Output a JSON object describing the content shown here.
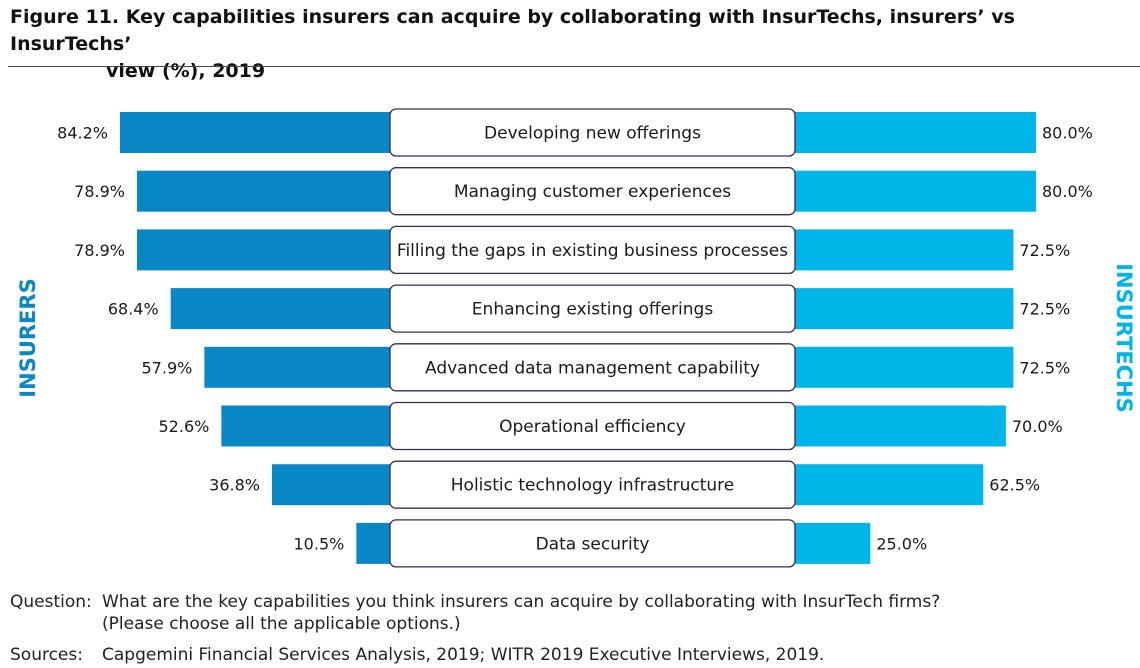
{
  "title": {
    "line1": "Figure 11. Key capabilities insurers can acquire by collaborating with InsurTechs, insurers’ vs InsurTechs’",
    "line2": "view (%), 2019"
  },
  "colors": {
    "insurers": "#0a88c6",
    "insurtechs": "#00b5e8",
    "box_border": "#3b2a52"
  },
  "chart_data": {
    "type": "bar",
    "layout": "butterfly",
    "left_label": "INSURERS",
    "right_label": "INSURTECHS",
    "categories": [
      "Developing new offerings",
      "Managing customer experiences",
      "Filling the gaps in existing business processes",
      "Enhancing existing offerings",
      "Advanced data management capability",
      "Operational efficiency",
      "Holistic technology infrastructure",
      "Data security"
    ],
    "series": [
      {
        "name": "INSURERS",
        "values": [
          84.2,
          78.9,
          78.9,
          68.4,
          57.9,
          52.6,
          36.8,
          10.5
        ],
        "labels": [
          "84.2%",
          "78.9%",
          "78.9%",
          "68.4%",
          "57.9%",
          "52.6%",
          "36.8%",
          "10.5%"
        ]
      },
      {
        "name": "INSURTECHS",
        "values": [
          80.0,
          80.0,
          72.5,
          72.5,
          72.5,
          70.0,
          62.5,
          25.0
        ],
        "labels": [
          "80.0%",
          "80.0%",
          "72.5%",
          "72.5%",
          "72.5%",
          "70.0%",
          "62.5%",
          "25.0%"
        ]
      }
    ],
    "unit": "%"
  },
  "question": {
    "label": "Question:",
    "line1": "What are the key capabilities you think insurers can acquire by collaborating with InsurTech firms?",
    "line2": "(Please choose all the applicable options.)"
  },
  "sources": {
    "label": "Sources:",
    "text": "Capgemini Financial Services Analysis, 2019; WITR 2019 Executive Interviews, 2019."
  }
}
